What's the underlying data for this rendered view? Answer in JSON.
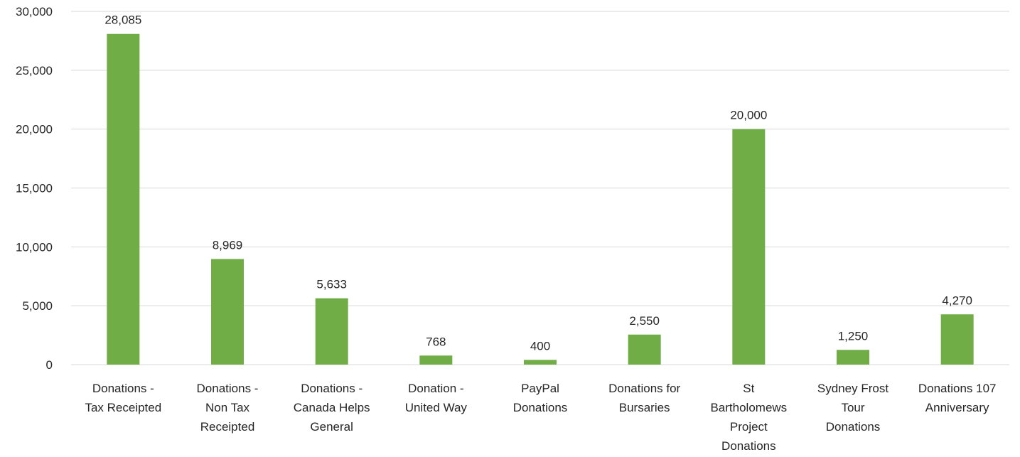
{
  "chart_data": {
    "type": "bar",
    "title": "",
    "xlabel": "",
    "ylabel": "",
    "ylim": [
      0,
      30000
    ],
    "yticks": [
      0,
      5000,
      10000,
      15000,
      20000,
      25000,
      30000
    ],
    "ytick_labels": [
      "0",
      "5,000",
      "10,000",
      "15,000",
      "20,000",
      "25,000",
      "30,000"
    ],
    "grid": true,
    "legend": "none",
    "bar_color": "#70ad47",
    "categories": [
      [
        "Donations -",
        "Tax Receipted"
      ],
      [
        "Donations -",
        "Non Tax",
        "Receipted"
      ],
      [
        "Donations -",
        "Canada Helps",
        "General"
      ],
      [
        "Donation -",
        "United  Way"
      ],
      [
        "PayPal",
        "Donations"
      ],
      [
        "Donations for",
        "Bursaries"
      ],
      [
        "St",
        "Bartholomews",
        "Project",
        "Donations"
      ],
      [
        "Sydney Frost",
        "Tour",
        "Donations"
      ],
      [
        "Donations 107",
        "Anniversary"
      ]
    ],
    "values": [
      28085,
      8969,
      5633,
      768,
      400,
      2550,
      20000,
      1250,
      4270
    ],
    "value_labels": [
      "28,085",
      "8,969",
      "5,633",
      "768",
      "400",
      "2,550",
      "20,000",
      "1,250",
      "4,270"
    ]
  }
}
